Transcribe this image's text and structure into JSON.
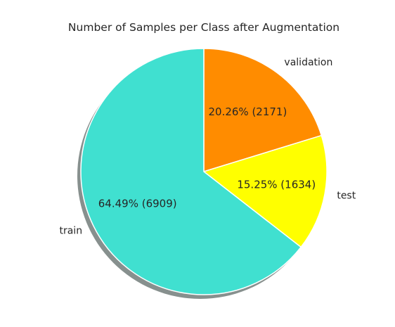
{
  "chart_data": {
    "type": "pie",
    "title": "Number of Samples per Class after Augmentation",
    "categories": [
      "validation",
      "test",
      "train"
    ],
    "values": [
      2171,
      1634,
      6909
    ],
    "percent_labels": [
      "20.26%  (2171)",
      "15.25%  (1634)",
      "64.49%  (6909)"
    ],
    "colors": [
      "#ff8c00",
      "#ffff00",
      "#40e0d0"
    ],
    "start_angle_deg": 90,
    "direction": "clockwise",
    "shadow": true,
    "legend": "none"
  }
}
